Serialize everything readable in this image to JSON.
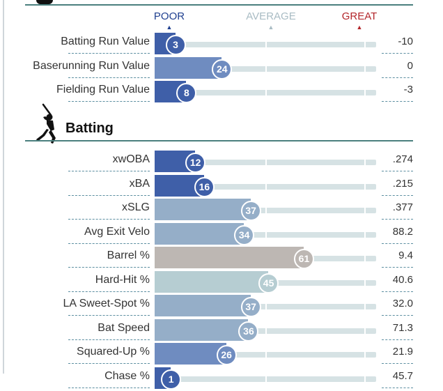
{
  "scale": {
    "poor": "POOR",
    "average": "AVERAGE",
    "great": "GREAT",
    "colors": {
      "poor": "#1f3f8f",
      "average": "#a9bcc4",
      "great": "#b3262b"
    }
  },
  "value_rows": [
    {
      "label": "Batting Run Value",
      "percentile": 3,
      "value": "-10"
    },
    {
      "label": "Baserunning Run Value",
      "percentile": 24,
      "value": "0"
    },
    {
      "label": "Fielding Run Value",
      "percentile": 8,
      "value": "-3"
    }
  ],
  "batting": {
    "title": "Batting",
    "icon": "batter-icon",
    "rows": [
      {
        "label": "xwOBA",
        "percentile": 12,
        "value": ".274"
      },
      {
        "label": "xBA",
        "percentile": 16,
        "value": ".215"
      },
      {
        "label": "xSLG",
        "percentile": 37,
        "value": ".377"
      },
      {
        "label": "Avg Exit Velo",
        "percentile": 34,
        "value": "88.2"
      },
      {
        "label": "Barrel %",
        "percentile": 61,
        "value": "9.4"
      },
      {
        "label": "Hard-Hit %",
        "percentile": 45,
        "value": "40.6"
      },
      {
        "label": "LA Sweet-Spot %",
        "percentile": 37,
        "value": "32.0"
      },
      {
        "label": "Bat Speed",
        "percentile": 36,
        "value": "71.3"
      },
      {
        "label": "Squared-Up %",
        "percentile": 26,
        "value": "21.9"
      },
      {
        "label": "Chase %",
        "percentile": 1,
        "value": "45.7"
      }
    ]
  }
}
